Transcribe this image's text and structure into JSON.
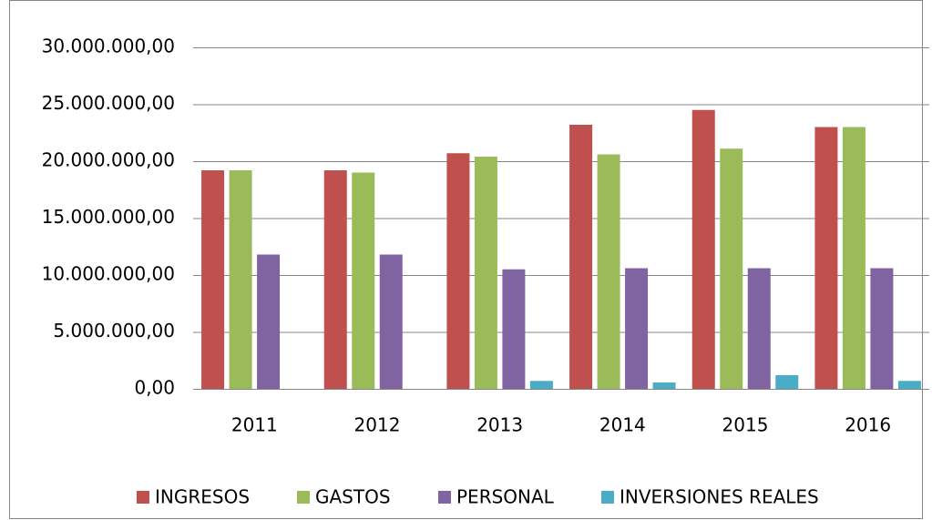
{
  "chart_data": {
    "type": "bar",
    "categories": [
      "2011",
      "2012",
      "2013",
      "2014",
      "2015",
      "2016"
    ],
    "series": [
      {
        "name": "INGRESOS",
        "color": "#c0504d",
        "values": [
          19200000,
          19200000,
          20700000,
          23200000,
          24500000,
          23000000
        ]
      },
      {
        "name": "GASTOS",
        "color": "#9bbb59",
        "values": [
          19200000,
          19000000,
          20400000,
          20600000,
          21100000,
          23000000
        ]
      },
      {
        "name": "PERSONAL",
        "color": "#8064a2",
        "values": [
          11800000,
          11800000,
          10500000,
          10600000,
          10600000,
          10600000
        ]
      },
      {
        "name": "INVERSIONES REALES",
        "color": "#4bacc6",
        "values": [
          0,
          0,
          700000,
          560000,
          1200000,
          700000
        ]
      }
    ],
    "ylim": [
      0,
      30000000
    ],
    "yticks": [
      {
        "value": 0,
        "label": "0,00"
      },
      {
        "value": 5000000,
        "label": "5.000.000,00"
      },
      {
        "value": 10000000,
        "label": "10.000.000,00"
      },
      {
        "value": 15000000,
        "label": "15.000.000,00"
      },
      {
        "value": 20000000,
        "label": "20.000.000,00"
      },
      {
        "value": 25000000,
        "label": "25.000.000,00"
      },
      {
        "value": 30000000,
        "label": "30.000.000,00"
      }
    ],
    "grid": true,
    "legend": "bottom"
  }
}
